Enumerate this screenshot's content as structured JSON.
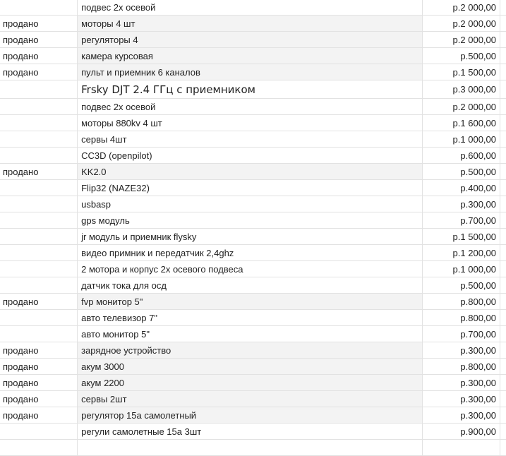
{
  "colors": {
    "sold_row_bg": "#f3f3f3",
    "gridline": "#e2e2e2",
    "text": "#222222"
  },
  "rows": [
    {
      "status": "",
      "item": "подвес 2х осевой",
      "price": "р.2 000,00"
    },
    {
      "status": "продано",
      "item": "моторы 4 шт",
      "price": "р.2 000,00"
    },
    {
      "status": "продано",
      "item": "регуляторы 4",
      "price": "р.2 000,00"
    },
    {
      "status": "продано",
      "item": "камера курсовая",
      "price": "р.500,00"
    },
    {
      "status": "продано",
      "item": "пульт и приемник 6 каналов",
      "price": "р.1 500,00"
    },
    {
      "status": "",
      "item": "Frsky DJT 2.4 ГГц с приемником",
      "price": "р.3 000,00"
    },
    {
      "status": "",
      "item": "подвес 2х осевой",
      "price": "р.2 000,00"
    },
    {
      "status": "",
      "item": "моторы 880kv 4 шт",
      "price": "р.1 600,00"
    },
    {
      "status": "",
      "item": "сервы 4шт",
      "price": "р.1 000,00"
    },
    {
      "status": "",
      "item": "CC3D (openpilot)",
      "price": "р.600,00"
    },
    {
      "status": "продано",
      "item": "KK2.0",
      "price": "р.500,00"
    },
    {
      "status": "",
      "item": "Flip32 (NAZE32)",
      "price": "р.400,00"
    },
    {
      "status": "",
      "item": "usbasp",
      "price": "р.300,00"
    },
    {
      "status": "",
      "item": "gps модуль",
      "price": "р.700,00"
    },
    {
      "status": "",
      "item": "jr модуль и приемник flysky",
      "price": "р.1 500,00"
    },
    {
      "status": "",
      "item": "видео примник и передатчик 2,4ghz",
      "price": "р.1 200,00"
    },
    {
      "status": "",
      "item": "2 мотора и корпус 2х осевого подвеса",
      "price": "р.1 000,00"
    },
    {
      "status": "",
      "item": "датчик тока для осд",
      "price": "р.500,00"
    },
    {
      "status": "продано",
      "item": "fvp монитор 5\"",
      "price": "р.800,00"
    },
    {
      "status": "",
      "item": "авто телевизор 7\"",
      "price": "р.800,00"
    },
    {
      "status": "",
      "item": "авто монитор 5\"",
      "price": "р.700,00"
    },
    {
      "status": "продано",
      "item": "зарядное устройство",
      "price": "р.300,00"
    },
    {
      "status": "продано",
      "item": "акум 3000",
      "price": "р.800,00"
    },
    {
      "status": "продано",
      "item": "акум 2200",
      "price": "р.300,00"
    },
    {
      "status": "продано",
      "item": "сервы 2шт",
      "price": "р.300,00"
    },
    {
      "status": "продано",
      "item": "регулятор 15а самолетный",
      "price": "р.300,00"
    },
    {
      "status": "",
      "item": "регули самолетные 15а 3шт",
      "price": "р.900,00"
    },
    {
      "status": "",
      "item": "",
      "price": ""
    }
  ]
}
